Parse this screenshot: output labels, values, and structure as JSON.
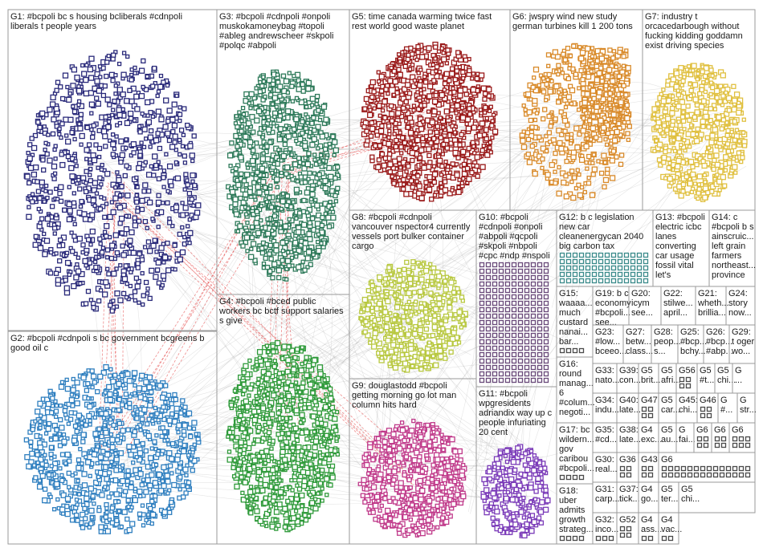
{
  "groups": [
    {
      "id": "G1",
      "lines": [
        "G1: #bcpoli bc s housing bcliberals #cdnpoli",
        "liberals t people years"
      ],
      "color": "#2a2a7a"
    },
    {
      "id": "G2",
      "lines": [
        "G2: #bcpoli #cdnpoli s bc government bcgreens b",
        "good oil c"
      ],
      "color": "#2f7fbf"
    },
    {
      "id": "G3",
      "lines": [
        "G3: #bcpoli #cdnpoli #onpoli",
        "muskokamoneybag #topoli",
        "#ableg andrewscheer #skpoli",
        "#polqc #abpoli"
      ],
      "color": "#2e7a5a"
    },
    {
      "id": "G4",
      "lines": [
        "G4: #bcpoli #bced public",
        "workers bc bctf support salaries",
        "s give"
      ],
      "color": "#2f9a3a"
    },
    {
      "id": "G5",
      "lines": [
        "G5: time canada warming twice fast",
        "rest world good waste planet"
      ],
      "color": "#9a1a1a"
    },
    {
      "id": "G6",
      "lines": [
        "G6: jwspry wind new study",
        "german turbines kill 1 200 tons"
      ],
      "color": "#d98a2a"
    },
    {
      "id": "G7",
      "lines": [
        "G7: industry t",
        "orcacedarbough without",
        "fucking kidding goddamn",
        "exist driving species"
      ],
      "color": "#e0c040"
    },
    {
      "id": "G8",
      "lines": [
        "G8: #bcpoli #cdnpoli",
        "vancouver nspector4 currently",
        "vessels port bulker container",
        "cargo"
      ],
      "color": "#b8c840"
    },
    {
      "id": "G9",
      "lines": [
        "G9: douglastodd #bcpoli",
        "getting morning go lot man",
        "column hits hard"
      ],
      "color": "#c03a8a"
    },
    {
      "id": "G10",
      "lines": [
        "G10: #bcpoli",
        "#cdnpoli #onpoli",
        "#abpoli #qcpoli",
        "#skpoli #nbpoli",
        "#cpc #ndp #nspoli"
      ],
      "color": "#6a4a7a"
    },
    {
      "id": "G11",
      "lines": [
        "G11: #bcpoli",
        "wpgresidents",
        "adriandix way up c",
        "people infuriating",
        "20 cent"
      ],
      "color": "#7a3ab8"
    },
    {
      "id": "G12",
      "lines": [
        "G12: b c legislation",
        "new car",
        "cleanenergycan 2040",
        "big carbon tax"
      ],
      "color": "#3a8a8a"
    },
    {
      "id": "G13",
      "lines": [
        "G13: #bcpoli",
        "electric icbc",
        "lanes",
        "converting",
        "car usage",
        "fossil vital",
        "let's"
      ],
      "color": "#5a9a3a"
    },
    {
      "id": "G14",
      "lines": [
        "G14: c",
        "#bcpoli b s",
        "ainscruic...",
        "left grain",
        "farmers",
        "northeast...",
        "province"
      ],
      "color": "#8a8a2a"
    },
    {
      "id": "G15",
      "lines": [
        "G15:",
        "waaaa...",
        "much",
        "custard",
        "nanai...",
        "bar..."
      ],
      "color": "#4a4a4a"
    },
    {
      "id": "G16",
      "lines": [
        "G16:",
        "round",
        "manag...",
        "6",
        "#colum...",
        "negoti..."
      ],
      "color": "#4a4a4a"
    },
    {
      "id": "G17",
      "lines": [
        "G17: bc",
        "wildern...",
        "gov",
        "caribou",
        "#bcpoli..."
      ],
      "color": "#4a4a4a"
    },
    {
      "id": "G18",
      "lines": [
        "G18:",
        "uber",
        "admits",
        "growth",
        "strateg..."
      ],
      "color": "#4a4a4a"
    },
    {
      "id": "G19",
      "lines": [
        "G19: b c",
        "economy",
        "#bcpoli...",
        "see..."
      ],
      "color": "#4a4a4a"
    },
    {
      "id": "G20",
      "lines": [
        "G20:",
        "icym",
        "see..."
      ],
      "color": "#4a4a4a"
    },
    {
      "id": "G21",
      "lines": [
        "G21:",
        "wheth...",
        "brillia..."
      ],
      "color": "#4a4a4a"
    },
    {
      "id": "G22",
      "lines": [
        "G22:",
        "stilwe...",
        "april..."
      ],
      "color": "#4a4a4a"
    },
    {
      "id": "G23",
      "lines": [
        "G23:",
        "#low...",
        "bceeo..."
      ],
      "color": "#4a4a4a"
    },
    {
      "id": "G24",
      "lines": [
        "G24:",
        "story",
        "now..."
      ],
      "color": "#4a4a4a"
    },
    {
      "id": "G25",
      "lines": [
        "G25:",
        "#bcp...",
        "bchy..."
      ],
      "color": "#4a4a4a"
    },
    {
      "id": "G26",
      "lines": [
        "G26:",
        "#bcp...",
        "#abp..."
      ],
      "color": "#4a4a4a"
    },
    {
      "id": "G27",
      "lines": [
        "G27:",
        "betw...",
        "class..."
      ],
      "color": "#4a4a4a"
    },
    {
      "id": "G28",
      "lines": [
        "G28:",
        "peop...",
        "s..."
      ],
      "color": "#4a4a4a"
    },
    {
      "id": "G29",
      "lines": [
        "G29:",
        "t oger",
        "wo..."
      ],
      "color": "#4a4a4a"
    },
    {
      "id": "G30",
      "lines": [
        "G30:",
        "real..."
      ],
      "color": "#4a4a4a"
    },
    {
      "id": "G31",
      "lines": [
        "G31:",
        "carp..."
      ],
      "color": "#4a4a4a"
    },
    {
      "id": "G32",
      "lines": [
        "G32:",
        "inco..."
      ],
      "color": "#4a4a4a"
    },
    {
      "id": "G33",
      "lines": [
        "G33:",
        "nato..."
      ],
      "color": "#4a4a4a"
    },
    {
      "id": "G34",
      "lines": [
        "G34:",
        "indu..."
      ],
      "color": "#4a4a4a"
    },
    {
      "id": "G35",
      "lines": [
        "G35:",
        "#cd..."
      ],
      "color": "#4a4a4a"
    },
    {
      "id": "G36",
      "lines": [
        "G36"
      ],
      "color": "#4a4a4a"
    },
    {
      "id": "G37",
      "lines": [
        "G37:",
        "tick..."
      ],
      "color": "#4a4a4a"
    },
    {
      "id": "G38",
      "lines": [
        "G38:",
        "late..."
      ],
      "color": "#4a4a4a"
    },
    {
      "id": "G39",
      "lines": [
        "G39:",
        "con..."
      ],
      "color": "#4a4a4a"
    },
    {
      "id": "G40",
      "lines": [
        "G40:",
        "late..."
      ],
      "color": "#4a4a4a"
    },
    {
      "id": "G41",
      "lines": [
        "G4",
        "exc..."
      ],
      "color": "#4a4a4a"
    },
    {
      "id": "G42",
      "lines": [
        "G4",
        "ass..."
      ],
      "color": "#4a4a4a"
    },
    {
      "id": "G43",
      "lines": [
        "G43"
      ],
      "color": "#4a4a4a"
    },
    {
      "id": "G44",
      "lines": [
        "G4",
        "go..."
      ],
      "color": "#4a4a4a"
    },
    {
      "id": "G45",
      "lines": [
        "G45:",
        "chi..."
      ],
      "color": "#4a4a4a"
    },
    {
      "id": "G46",
      "lines": [
        "G46"
      ],
      "color": "#4a4a4a"
    },
    {
      "id": "G47",
      "lines": [
        "G47"
      ],
      "color": "#4a4a4a"
    },
    {
      "id": "G48",
      "lines": [
        "G5",
        "brit..."
      ],
      "color": "#4a4a4a"
    },
    {
      "id": "G49",
      "lines": [
        "G5",
        "ter..."
      ],
      "color": "#4a4a4a"
    },
    {
      "id": "G50",
      "lines": [
        "G5",
        "au..."
      ],
      "color": "#4a4a4a"
    },
    {
      "id": "G51",
      "lines": [
        "G4",
        "vac..."
      ],
      "color": "#4a4a4a"
    },
    {
      "id": "G52",
      "lines": [
        "G52"
      ],
      "color": "#4a4a4a"
    },
    {
      "id": "G53",
      "lines": [
        "G5",
        "car..."
      ],
      "color": "#4a4a4a"
    },
    {
      "id": "G54",
      "lines": [
        "G5",
        "afri..."
      ],
      "color": "#4a4a4a"
    },
    {
      "id": "G55",
      "lines": [
        "G5",
        "chi..."
      ],
      "color": "#4a4a4a"
    },
    {
      "id": "G56",
      "lines": [
        "G56"
      ],
      "color": "#4a4a4a"
    },
    {
      "id": "G57",
      "lines": [
        "G5",
        "#t..."
      ],
      "color": "#4a4a4a"
    },
    {
      "id": "G58",
      "lines": [
        "G5",
        "chi..."
      ],
      "color": "#4a4a4a"
    },
    {
      "id": "G59",
      "lines": [
        "G",
        "fai..."
      ],
      "color": "#4a4a4a"
    },
    {
      "id": "G60",
      "lines": [
        "G",
        "..."
      ],
      "color": "#4a4a4a"
    },
    {
      "id": "G61",
      "lines": [
        "G",
        "#..."
      ],
      "color": "#4a4a4a"
    },
    {
      "id": "G62",
      "lines": [
        "G",
        "str..."
      ],
      "color": "#4a4a4a"
    },
    {
      "id": "G63",
      "lines": [
        "G6"
      ],
      "color": "#4a4a4a"
    },
    {
      "id": "G64",
      "lines": [
        "G6"
      ],
      "color": "#4a4a4a"
    },
    {
      "id": "G65",
      "lines": [
        "G6"
      ],
      "color": "#4a4a4a"
    },
    {
      "id": "G66",
      "lines": [
        "G6"
      ],
      "color": "#4a4a4a"
    }
  ],
  "edge_color": "#8a8a8a",
  "highlight_edge_color": "#e03030"
}
